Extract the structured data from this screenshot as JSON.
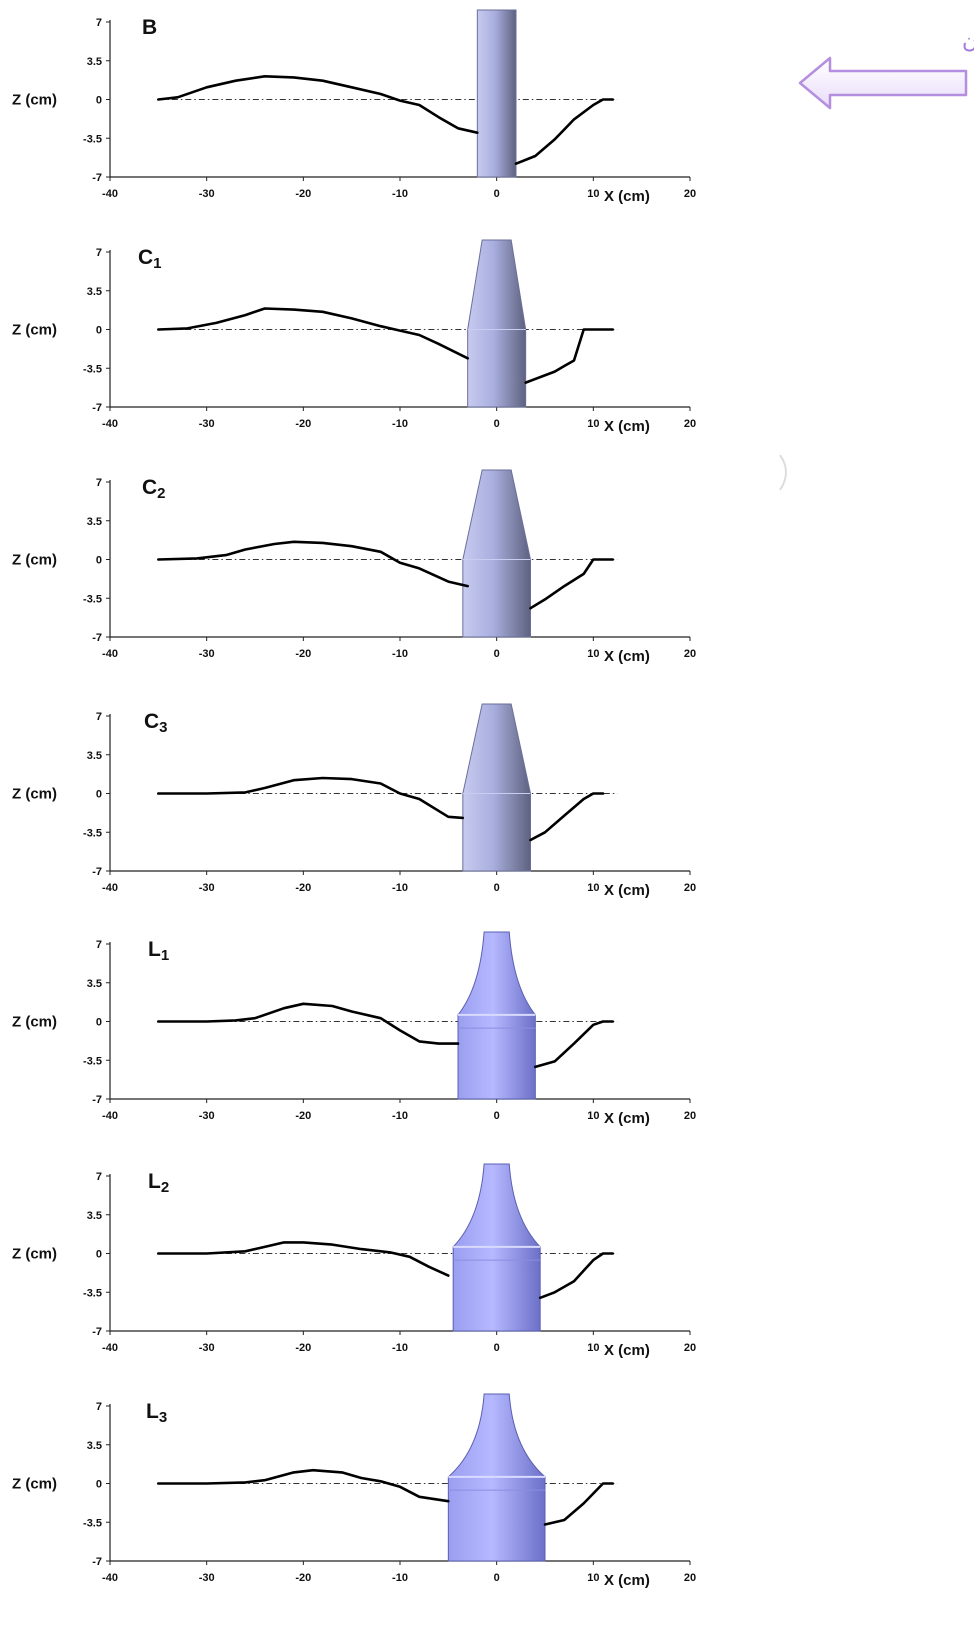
{
  "flow": {
    "label": "جهت جریان"
  },
  "axes": {
    "xlabel": "X (cm)",
    "ylabel": "Z (cm)",
    "xlim": [
      -40,
      20
    ],
    "ylim": [
      -7,
      7
    ]
  },
  "colors": {
    "pier": "#a9aede",
    "pier_dark": "#6a6f9a",
    "profile": "#000000",
    "flow_arrow": "#b48fe0"
  },
  "chart_data": [
    {
      "type": "line",
      "panel": "B",
      "label": "B",
      "x_ticks": [
        "-40",
        "-30",
        "-20",
        "-10",
        "0",
        "10",
        "20"
      ],
      "y_ticks": [
        "7",
        "3.5",
        "0",
        "-3.5",
        "-7"
      ],
      "pier": {
        "type": "cylinder",
        "base_half_width": 2,
        "top_half_width": 2
      },
      "x": [
        -35,
        -33,
        -30,
        -27,
        -24,
        -21,
        -18,
        -15,
        -12,
        -10,
        -8,
        -6,
        -4,
        -2,
        2,
        4,
        6,
        8,
        10,
        11,
        12
      ],
      "y": [
        0,
        0.2,
        1.1,
        1.7,
        2.1,
        2.0,
        1.7,
        1.1,
        0.5,
        -0.1,
        -0.5,
        -1.6,
        -2.6,
        -3.0,
        -5.8,
        -5.1,
        -3.6,
        -1.8,
        -0.5,
        0,
        0
      ]
    },
    {
      "type": "line",
      "panel": "C1",
      "label": "C",
      "label_sub": "1",
      "x_ticks": [
        "-40",
        "-30",
        "-20",
        "-10",
        "0",
        "10",
        "20"
      ],
      "y_ticks": [
        "7",
        "3.5",
        "0",
        "-3.5",
        "-7"
      ],
      "pier": {
        "type": "tapered",
        "base_half_width": 3,
        "top_half_width": 1.5
      },
      "x": [
        -35,
        -32,
        -29,
        -26,
        -24,
        -21,
        -18,
        -15,
        -12,
        -10,
        -8,
        -6,
        -3,
        3,
        6,
        7,
        8,
        9,
        10,
        12
      ],
      "y": [
        0,
        0.1,
        0.6,
        1.3,
        1.9,
        1.8,
        1.6,
        1.0,
        0.3,
        -0.1,
        -0.5,
        -1.3,
        -2.6,
        -4.8,
        -3.8,
        -3.3,
        -2.8,
        0,
        0,
        0
      ]
    },
    {
      "type": "line",
      "panel": "C2",
      "label": "C",
      "label_sub": "2",
      "x_ticks": [
        "-40",
        "-30",
        "-20",
        "-10",
        "0",
        "10",
        "20"
      ],
      "y_ticks": [
        "7",
        "3.5",
        "0",
        "-3.5",
        "-7"
      ],
      "pier": {
        "type": "tapered",
        "base_half_width": 3.5,
        "top_half_width": 1.5
      },
      "x": [
        -35,
        -31,
        -28,
        -26,
        -23,
        -21,
        -18,
        -15,
        -12,
        -10,
        -8,
        -5,
        -3,
        3.5,
        5,
        7,
        9,
        10,
        12
      ],
      "y": [
        0,
        0.1,
        0.4,
        0.9,
        1.4,
        1.6,
        1.5,
        1.2,
        0.7,
        -0.3,
        -0.8,
        -2.0,
        -2.4,
        -4.4,
        -3.6,
        -2.4,
        -1.3,
        0,
        0
      ]
    },
    {
      "type": "line",
      "panel": "C3",
      "label": "C",
      "label_sub": "3",
      "x_ticks": [
        "-40",
        "-30",
        "-20",
        "-10",
        "0",
        "10",
        "20"
      ],
      "y_ticks": [
        "7",
        "3.5",
        "0",
        "-3.5",
        "-7"
      ],
      "pier": {
        "type": "tapered",
        "base_half_width": 3.5,
        "top_half_width": 1.5
      },
      "x": [
        -35,
        -30,
        -26,
        -24,
        -21,
        -18,
        -15,
        -12,
        -10,
        -8,
        -5,
        -3.5,
        3.5,
        5,
        7,
        9,
        10,
        11
      ],
      "y": [
        0,
        0,
        0.1,
        0.5,
        1.2,
        1.4,
        1.3,
        0.9,
        0,
        -0.5,
        -2.1,
        -2.2,
        -4.2,
        -3.5,
        -2.0,
        -0.5,
        0,
        0
      ]
    },
    {
      "type": "line",
      "panel": "L1",
      "label": "L",
      "label_sub": "1",
      "x_ticks": [
        "-40",
        "-30",
        "-20",
        "-10",
        "0",
        "10",
        "20"
      ],
      "y_ticks": [
        "7",
        "3.5",
        "0",
        "-3.5",
        "-7"
      ],
      "pier": {
        "type": "flared",
        "base_half_width": 4,
        "top_half_width": 1.3,
        "collar_z": 0.6
      },
      "x": [
        -35,
        -30,
        -27,
        -25,
        -22,
        -20,
        -17,
        -15,
        -12,
        -10,
        -8,
        -6,
        -4,
        4,
        6,
        8,
        10,
        11,
        12
      ],
      "y": [
        0,
        0,
        0.1,
        0.3,
        1.2,
        1.6,
        1.4,
        0.9,
        0.3,
        -0.8,
        -1.8,
        -2.0,
        -2.0,
        -4.1,
        -3.6,
        -2.0,
        -0.3,
        0,
        0
      ]
    },
    {
      "type": "line",
      "panel": "L2",
      "label": "L",
      "label_sub": "2",
      "x_ticks": [
        "-40",
        "-30",
        "-20",
        "-10",
        "0",
        "10",
        "20"
      ],
      "y_ticks": [
        "7",
        "3.5",
        "0",
        "-3.5",
        "-7"
      ],
      "pier": {
        "type": "flared",
        "base_half_width": 4.5,
        "top_half_width": 1.3,
        "collar_z": 0.6
      },
      "x": [
        -35,
        -30,
        -26,
        -24,
        -22,
        -20,
        -17,
        -14,
        -11,
        -9,
        -7,
        -5,
        4.5,
        6,
        8,
        10,
        11,
        12
      ],
      "y": [
        0,
        0,
        0.2,
        0.6,
        1.0,
        1.0,
        0.8,
        0.4,
        0.1,
        -0.3,
        -1.2,
        -2.0,
        -4.0,
        -3.5,
        -2.5,
        -0.6,
        0,
        0
      ]
    },
    {
      "type": "line",
      "panel": "L3",
      "label": "L",
      "label_sub": "3",
      "x_ticks": [
        "-40",
        "-30",
        "-20",
        "-10",
        "0",
        "10",
        "20"
      ],
      "y_ticks": [
        "7",
        "3.5",
        "0",
        "-3.5",
        "-7"
      ],
      "pier": {
        "type": "flared",
        "base_half_width": 5,
        "top_half_width": 1.3,
        "collar_z": 0.6
      },
      "x": [
        -35,
        -30,
        -26,
        -24,
        -21,
        -19,
        -16,
        -14,
        -12,
        -10,
        -8,
        -5,
        5,
        7,
        9,
        11,
        12
      ],
      "y": [
        0,
        0,
        0.1,
        0.3,
        1.0,
        1.2,
        1.0,
        0.5,
        0.2,
        -0.3,
        -1.2,
        -1.6,
        -3.7,
        -3.3,
        -1.8,
        0,
        0
      ]
    }
  ]
}
